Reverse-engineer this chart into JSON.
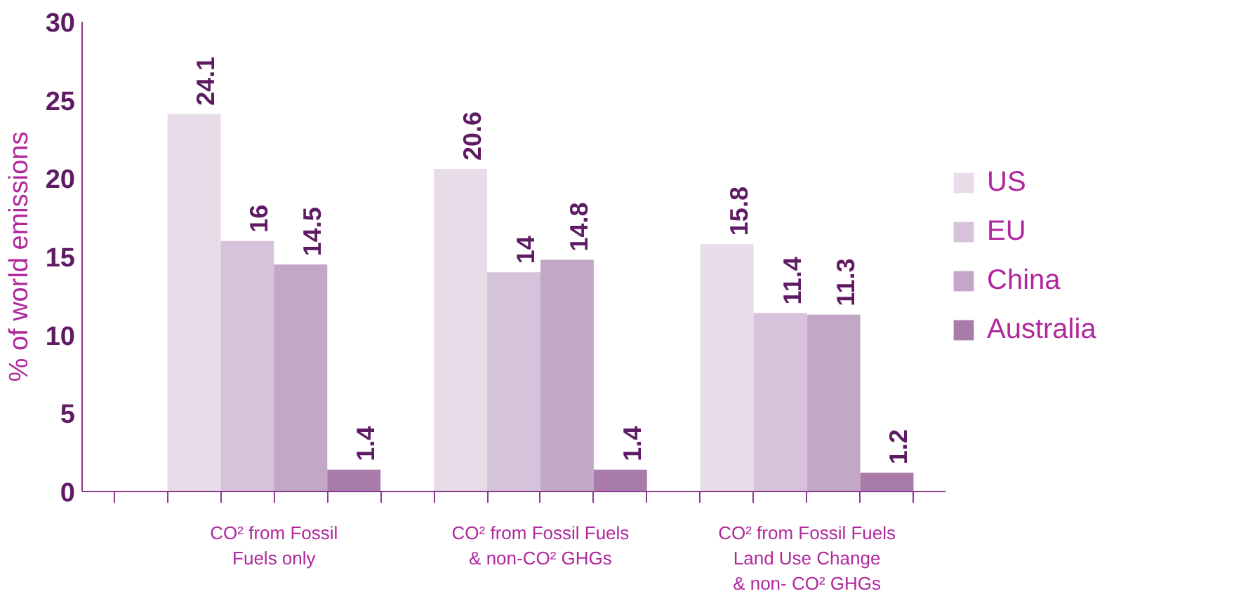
{
  "chart_data": {
    "type": "bar",
    "ylabel": "% of world emissions",
    "categories": [
      "CO² from Fossil\nFuels only",
      "CO² from Fossil Fuels\n& non-CO² GHGs",
      "CO² from Fossil Fuels\nLand Use Change\n& non- CO² GHGs"
    ],
    "series": [
      {
        "name": "US",
        "color": "#e8dce8",
        "values": [
          24.1,
          20.6,
          15.8
        ]
      },
      {
        "name": "EU",
        "color": "#d6c2da",
        "values": [
          16,
          14,
          11.4
        ]
      },
      {
        "name": "China",
        "color": "#c3a7c7",
        "values": [
          14.5,
          14.8,
          11.3
        ]
      },
      {
        "name": "Australia",
        "color": "#a87ba9",
        "values": [
          1.4,
          1.4,
          1.2
        ]
      }
    ],
    "ylim": [
      0,
      30
    ],
    "yticks": [
      0,
      5,
      10,
      15,
      20,
      25,
      30
    ],
    "data_labels": true,
    "grid": false,
    "legend": "right"
  }
}
